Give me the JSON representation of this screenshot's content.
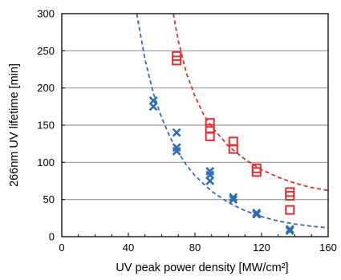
{
  "chart_data": {
    "type": "scatter",
    "xlabel": "UV peak power density [MW/cm²]",
    "ylabel": "266nm UV lifetime [min]",
    "xlim": [
      0,
      160
    ],
    "ylim": [
      0,
      300
    ],
    "xticks": [
      0,
      40,
      80,
      120,
      160
    ],
    "yticks": [
      0,
      50,
      100,
      150,
      200,
      250,
      300
    ],
    "grid": "horizontal",
    "series": [
      {
        "marker": "x",
        "color": "#2e6db4",
        "points": [
          {
            "x": 55,
            "y": 183
          },
          {
            "x": 55,
            "y": 175
          },
          {
            "x": 69,
            "y": 140
          },
          {
            "x": 69,
            "y": 120
          },
          {
            "x": 69,
            "y": 115
          },
          {
            "x": 89,
            "y": 88
          },
          {
            "x": 89,
            "y": 83
          },
          {
            "x": 89,
            "y": 75
          },
          {
            "x": 103,
            "y": 53
          },
          {
            "x": 103,
            "y": 50
          },
          {
            "x": 117,
            "y": 32
          },
          {
            "x": 117,
            "y": 30
          },
          {
            "x": 137,
            "y": 10
          },
          {
            "x": 137,
            "y": 8
          }
        ],
        "fit": {
          "style": "dashed",
          "x": [
            45,
            50,
            55,
            60,
            65,
            70,
            75,
            80,
            90,
            100,
            110,
            120,
            130,
            140,
            150,
            160
          ],
          "y": [
            300,
            238,
            193,
            160,
            134,
            113,
            96,
            82,
            61,
            46,
            35,
            27,
            21,
            17,
            14,
            12
          ]
        }
      },
      {
        "marker": "square",
        "color": "#e03030",
        "points": [
          {
            "x": 69,
            "y": 243
          },
          {
            "x": 69,
            "y": 237
          },
          {
            "x": 89,
            "y": 153
          },
          {
            "x": 89,
            "y": 145
          },
          {
            "x": 89,
            "y": 135
          },
          {
            "x": 103,
            "y": 128
          },
          {
            "x": 103,
            "y": 118
          },
          {
            "x": 117,
            "y": 92
          },
          {
            "x": 117,
            "y": 87
          },
          {
            "x": 137,
            "y": 60
          },
          {
            "x": 137,
            "y": 55
          },
          {
            "x": 137,
            "y": 36
          }
        ],
        "fit": {
          "style": "dashed",
          "x": [
            67,
            70,
            75,
            80,
            85,
            90,
            100,
            110,
            120,
            130,
            140,
            150,
            160
          ],
          "y": [
            300,
            263,
            219,
            189,
            165,
            148,
            122,
            104,
            90,
            80,
            72,
            66,
            62
          ]
        }
      }
    ]
  }
}
